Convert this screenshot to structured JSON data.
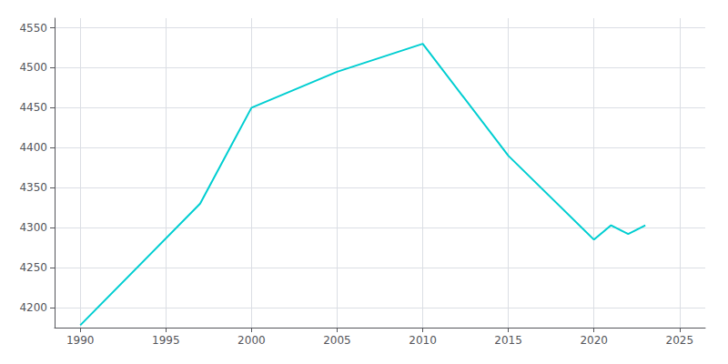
{
  "chart_data": {
    "type": "line",
    "x": [
      1990,
      1997,
      2000,
      2005,
      2010,
      2015,
      2020,
      2021,
      2022,
      2023
    ],
    "values": [
      4178,
      4330,
      4450,
      4495,
      4530,
      4390,
      4285,
      4303,
      4292,
      4303
    ],
    "color": "#00CED1",
    "xlim": [
      1988.5,
      2026.5
    ],
    "ylim": [
      4175,
      4562
    ],
    "xticks": [
      1990,
      1995,
      2000,
      2005,
      2010,
      2015,
      2020,
      2025
    ],
    "yticks": [
      4200,
      4250,
      4300,
      4350,
      4400,
      4450,
      4500,
      4550
    ],
    "grid": true
  }
}
